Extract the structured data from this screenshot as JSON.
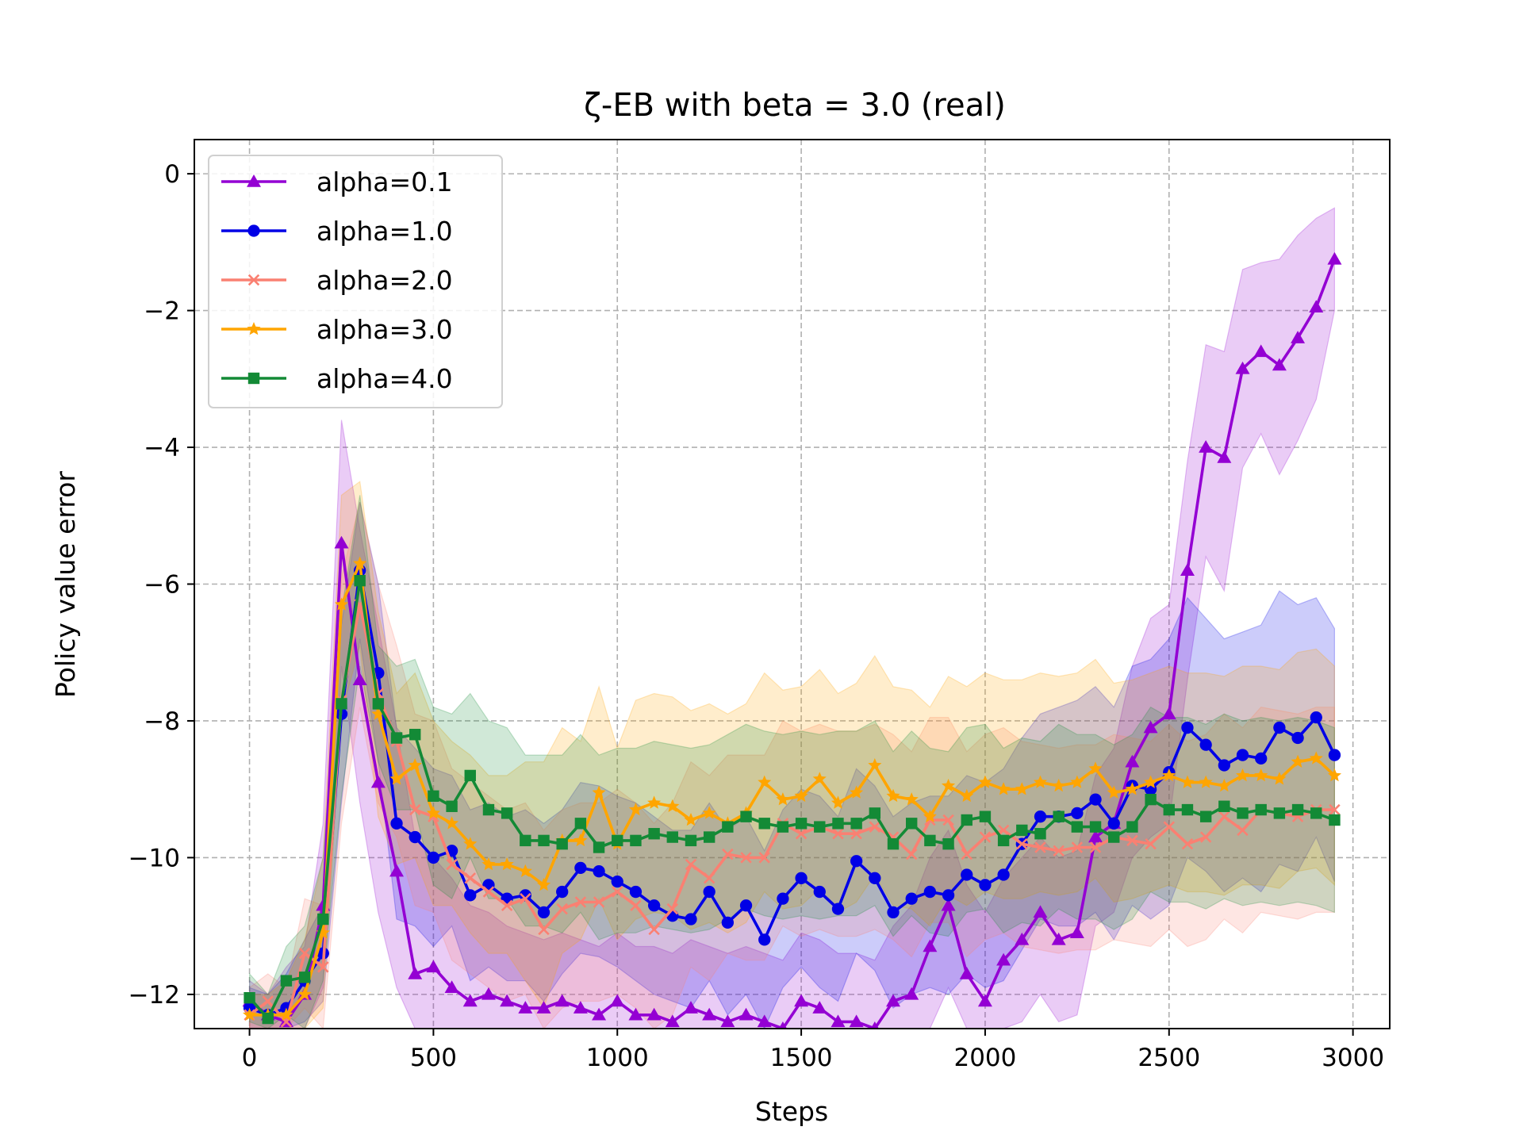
{
  "chart_data": {
    "type": "line",
    "title": "ζ-EB with beta = 3.0 (real)",
    "xlabel": "Steps",
    "ylabel": "Policy value error",
    "xlim": [
      -150,
      3100
    ],
    "ylim": [
      -12.5,
      0.5
    ],
    "xticks": [
      0,
      500,
      1000,
      1500,
      2000,
      2500,
      3000
    ],
    "yticks": [
      0,
      -2,
      -4,
      -6,
      -8,
      -10,
      -12
    ],
    "xtick_labels": [
      "0",
      "500",
      "1000",
      "1500",
      "2000",
      "2500",
      "3000"
    ],
    "ytick_labels": [
      "0",
      "−2",
      "−4",
      "−6",
      "−8",
      "−10",
      "−12"
    ],
    "grid": true,
    "legend_position": "top-left",
    "x": [
      0,
      50,
      100,
      150,
      200,
      250,
      300,
      350,
      400,
      450,
      500,
      550,
      600,
      650,
      700,
      750,
      800,
      850,
      900,
      950,
      1000,
      1050,
      1100,
      1150,
      1200,
      1250,
      1300,
      1350,
      1400,
      1450,
      1500,
      1550,
      1600,
      1650,
      1700,
      1750,
      1800,
      1850,
      1900,
      1950,
      2000,
      2050,
      2100,
      2150,
      2200,
      2250,
      2300,
      2350,
      2400,
      2450,
      2500,
      2550,
      2600,
      2650,
      2700,
      2750,
      2800,
      2850,
      2900,
      2950
    ],
    "series": [
      {
        "name": "alpha=0.1",
        "color": "#9400d3",
        "marker": "triangle",
        "values": [
          -12.1,
          -12.3,
          -12.4,
          -12.0,
          -10.7,
          -5.4,
          -7.4,
          -8.9,
          -10.2,
          -11.7,
          -11.6,
          -11.9,
          -12.1,
          -12.0,
          -12.1,
          -12.2,
          -12.2,
          -12.1,
          -12.2,
          -12.3,
          -12.1,
          -12.3,
          -12.3,
          -12.4,
          -12.2,
          -12.3,
          -12.4,
          -12.3,
          -12.4,
          -12.5,
          -12.1,
          -12.2,
          -12.4,
          -12.4,
          -12.5,
          -12.1,
          -12.0,
          -11.3,
          -10.7,
          -11.7,
          -12.1,
          -11.5,
          -11.2,
          -10.8,
          -11.2,
          -11.1,
          -9.7,
          -9.5,
          -8.6,
          -8.1,
          -7.9,
          -5.8,
          -4.0,
          -4.15,
          -2.85,
          -2.6,
          -2.8,
          -2.4,
          -1.95,
          -1.25
        ],
        "upper": [
          -11.8,
          -12.0,
          -11.6,
          -11.3,
          -9.5,
          -3.6,
          -5.2,
          -6.6,
          -8.1,
          -9.7,
          -10.0,
          -10.3,
          -10.7,
          -10.8,
          -11.0,
          -11.1,
          -11.2,
          -11.1,
          -11.2,
          -11.3,
          -11.1,
          -11.3,
          -11.3,
          -11.4,
          -11.2,
          -11.3,
          -11.4,
          -11.3,
          -11.4,
          -11.5,
          -11.1,
          -11.2,
          -11.4,
          -11.4,
          -11.5,
          -11.0,
          -10.7,
          -10.0,
          -9.6,
          -10.4,
          -10.8,
          -10.3,
          -10.0,
          -9.7,
          -10.0,
          -9.9,
          -8.8,
          -8.4,
          -7.2,
          -6.5,
          -6.3,
          -4.2,
          -2.5,
          -2.6,
          -1.4,
          -1.3,
          -1.25,
          -0.9,
          -0.65,
          -0.5
        ],
        "lower": [
          -12.5,
          -12.5,
          -12.5,
          -12.5,
          -11.9,
          -7.2,
          -9.2,
          -10.8,
          -11.9,
          -12.5,
          -12.5,
          -12.5,
          -12.5,
          -12.5,
          -12.5,
          -12.5,
          -12.5,
          -12.5,
          -12.5,
          -12.5,
          -12.5,
          -12.5,
          -12.5,
          -12.5,
          -12.5,
          -12.5,
          -12.5,
          -12.5,
          -12.5,
          -12.5,
          -12.5,
          -12.5,
          -12.5,
          -12.5,
          -12.5,
          -12.5,
          -12.5,
          -12.5,
          -11.9,
          -12.5,
          -12.5,
          -12.5,
          -12.4,
          -12.0,
          -12.4,
          -12.3,
          -11.0,
          -10.8,
          -10.0,
          -9.7,
          -9.5,
          -7.4,
          -5.6,
          -6.1,
          -4.3,
          -3.8,
          -4.4,
          -3.9,
          -3.3,
          -2.0
        ]
      },
      {
        "name": "alpha=1.0",
        "color": "#0000e6",
        "marker": "circle",
        "values": [
          -12.2,
          -12.3,
          -12.2,
          -11.8,
          -11.4,
          -7.9,
          -5.8,
          -7.3,
          -9.5,
          -9.7,
          -10.0,
          -9.9,
          -10.55,
          -10.4,
          -10.6,
          -10.55,
          -10.8,
          -10.5,
          -10.15,
          -10.2,
          -10.35,
          -10.5,
          -10.7,
          -10.85,
          -10.9,
          -10.5,
          -10.95,
          -10.7,
          -11.2,
          -10.6,
          -10.3,
          -10.5,
          -10.75,
          -10.05,
          -10.3,
          -10.8,
          -10.6,
          -10.5,
          -10.55,
          -10.25,
          -10.4,
          -10.25,
          -9.8,
          -9.4,
          -9.4,
          -9.35,
          -9.15,
          -9.5,
          -8.95,
          -9.0,
          -8.75,
          -8.1,
          -8.35,
          -8.65,
          -8.5,
          -8.55,
          -8.1,
          -8.25,
          -7.95,
          -8.5
        ],
        "upper": [
          -11.9,
          -12.0,
          -11.7,
          -11.2,
          -10.7,
          -6.6,
          -4.8,
          -6.0,
          -8.1,
          -8.4,
          -8.7,
          -8.8,
          -9.3,
          -9.2,
          -9.4,
          -9.3,
          -9.5,
          -9.3,
          -8.9,
          -8.95,
          -9.1,
          -9.2,
          -9.4,
          -9.6,
          -9.6,
          -9.2,
          -9.6,
          -9.4,
          -9.9,
          -9.3,
          -9.0,
          -9.1,
          -9.4,
          -8.7,
          -8.95,
          -9.4,
          -9.2,
          -9.1,
          -9.1,
          -8.8,
          -8.9,
          -8.7,
          -8.25,
          -7.9,
          -7.8,
          -7.7,
          -7.5,
          -7.8,
          -7.2,
          -7.1,
          -6.8,
          -6.2,
          -6.5,
          -6.8,
          -6.7,
          -6.6,
          -6.1,
          -6.3,
          -6.2,
          -6.65
        ],
        "lower": [
          -12.5,
          -12.5,
          -12.5,
          -12.4,
          -12.1,
          -9.2,
          -6.8,
          -8.6,
          -10.9,
          -11.0,
          -11.3,
          -11.0,
          -11.8,
          -11.6,
          -11.8,
          -11.8,
          -12.1,
          -11.7,
          -11.4,
          -11.45,
          -11.6,
          -11.8,
          -12.0,
          -12.1,
          -12.2,
          -11.8,
          -12.3,
          -12.0,
          -12.5,
          -11.9,
          -11.6,
          -11.9,
          -12.1,
          -11.4,
          -11.65,
          -12.2,
          -12.0,
          -11.9,
          -12.0,
          -11.7,
          -11.9,
          -11.8,
          -11.35,
          -10.9,
          -11.0,
          -11.0,
          -10.8,
          -11.2,
          -10.7,
          -10.9,
          -10.7,
          -10.0,
          -10.2,
          -10.5,
          -10.3,
          -10.5,
          -10.1,
          -10.2,
          -9.7,
          -10.35
        ]
      },
      {
        "name": "alpha=2.0",
        "color": "#fa8072",
        "marker": "x",
        "values": [
          -12.3,
          -12.1,
          -12.4,
          -11.4,
          -11.6,
          -7.7,
          -6.3,
          -7.6,
          -8.3,
          -9.3,
          -9.4,
          -10.1,
          -10.3,
          -10.5,
          -10.7,
          -10.6,
          -11.05,
          -10.75,
          -10.65,
          -10.65,
          -10.5,
          -10.7,
          -11.05,
          -10.75,
          -10.1,
          -10.3,
          -9.95,
          -10.0,
          -10.0,
          -9.5,
          -9.65,
          -9.55,
          -9.65,
          -9.65,
          -9.55,
          -9.7,
          -9.95,
          -9.45,
          -9.45,
          -9.95,
          -9.7,
          -9.6,
          -9.8,
          -9.85,
          -9.9,
          -9.85,
          -9.85,
          -9.7,
          -9.75,
          -9.8,
          -9.55,
          -9.8,
          -9.7,
          -9.4,
          -9.6,
          -9.3,
          -9.35,
          -9.4,
          -9.3,
          -9.3
        ],
        "upper": [
          -11.9,
          -11.7,
          -11.9,
          -10.6,
          -10.7,
          -5.9,
          -4.8,
          -6.0,
          -6.9,
          -7.9,
          -8.0,
          -8.7,
          -8.9,
          -9.1,
          -9.3,
          -9.2,
          -9.6,
          -9.3,
          -9.2,
          -9.2,
          -9.0,
          -9.2,
          -9.5,
          -9.2,
          -8.6,
          -8.8,
          -8.5,
          -8.5,
          -8.5,
          -8.0,
          -8.15,
          -8.05,
          -8.15,
          -8.15,
          -8.05,
          -8.2,
          -8.45,
          -7.95,
          -7.95,
          -8.45,
          -8.2,
          -8.1,
          -8.3,
          -8.35,
          -8.4,
          -8.35,
          -8.35,
          -8.2,
          -8.25,
          -8.3,
          -8.05,
          -8.3,
          -8.2,
          -7.9,
          -8.1,
          -7.8,
          -7.85,
          -7.9,
          -7.8,
          -7.8
        ],
        "lower": [
          -12.5,
          -12.5,
          -12.5,
          -12.2,
          -12.5,
          -9.5,
          -7.8,
          -9.2,
          -9.7,
          -10.7,
          -10.8,
          -11.5,
          -11.7,
          -11.9,
          -12.1,
          -12.0,
          -12.5,
          -12.2,
          -12.1,
          -12.1,
          -12.0,
          -12.2,
          -12.5,
          -12.3,
          -11.6,
          -11.8,
          -11.4,
          -11.5,
          -11.5,
          -11.0,
          -11.15,
          -11.05,
          -11.15,
          -11.15,
          -11.05,
          -11.2,
          -11.45,
          -10.95,
          -10.95,
          -11.45,
          -11.2,
          -11.1,
          -11.3,
          -11.35,
          -11.4,
          -11.35,
          -11.35,
          -11.2,
          -11.25,
          -11.3,
          -11.05,
          -11.3,
          -11.2,
          -10.9,
          -11.1,
          -10.8,
          -10.85,
          -10.9,
          -10.8,
          -10.8
        ]
      },
      {
        "name": "alpha=3.0",
        "color": "#ffa500",
        "marker": "star",
        "values": [
          -12.3,
          -12.3,
          -12.3,
          -12.0,
          -11.1,
          -6.3,
          -5.7,
          -7.9,
          -8.85,
          -8.65,
          -9.35,
          -9.5,
          -9.8,
          -10.1,
          -10.1,
          -10.2,
          -10.4,
          -9.75,
          -9.75,
          -9.05,
          -9.8,
          -9.3,
          -9.2,
          -9.25,
          -9.45,
          -9.35,
          -9.5,
          -9.35,
          -8.9,
          -9.15,
          -9.1,
          -8.85,
          -9.2,
          -9.05,
          -8.65,
          -9.1,
          -9.15,
          -9.4,
          -8.95,
          -9.1,
          -8.9,
          -9.0,
          -9.0,
          -8.9,
          -8.95,
          -8.9,
          -8.7,
          -9.05,
          -9.0,
          -8.9,
          -8.8,
          -8.9,
          -8.9,
          -8.95,
          -8.8,
          -8.8,
          -8.85,
          -8.6,
          -8.55,
          -8.8
        ],
        "upper": [
          -12.0,
          -12.0,
          -11.8,
          -11.2,
          -10.0,
          -4.7,
          -4.5,
          -6.4,
          -7.6,
          -7.3,
          -8.0,
          -8.3,
          -8.5,
          -8.8,
          -8.8,
          -8.6,
          -8.6,
          -8.1,
          -8.3,
          -7.5,
          -8.4,
          -7.7,
          -7.6,
          -7.65,
          -7.85,
          -7.75,
          -7.9,
          -7.75,
          -7.3,
          -7.55,
          -7.5,
          -7.25,
          -7.6,
          -7.45,
          -7.05,
          -7.5,
          -7.55,
          -7.8,
          -7.35,
          -7.5,
          -7.3,
          -7.4,
          -7.4,
          -7.3,
          -7.35,
          -7.3,
          -7.1,
          -7.45,
          -7.4,
          -7.3,
          -7.2,
          -7.3,
          -7.3,
          -7.35,
          -7.2,
          -7.2,
          -7.25,
          -7.0,
          -6.95,
          -7.2
        ],
        "lower": [
          -12.5,
          -12.5,
          -12.5,
          -12.5,
          -12.2,
          -7.9,
          -6.9,
          -9.4,
          -10.1,
          -10.0,
          -10.7,
          -10.7,
          -11.1,
          -11.4,
          -11.4,
          -11.8,
          -12.2,
          -11.4,
          -11.2,
          -10.6,
          -11.2,
          -10.9,
          -10.8,
          -10.85,
          -11.05,
          -10.95,
          -11.1,
          -10.95,
          -10.5,
          -10.75,
          -10.7,
          -10.45,
          -10.8,
          -10.65,
          -10.25,
          -10.7,
          -10.75,
          -11.0,
          -10.55,
          -10.7,
          -10.5,
          -10.6,
          -10.6,
          -10.5,
          -10.55,
          -10.5,
          -10.3,
          -10.65,
          -10.6,
          -10.5,
          -10.4,
          -10.5,
          -10.5,
          -10.55,
          -10.4,
          -10.4,
          -10.45,
          -10.2,
          -10.15,
          -10.4
        ]
      },
      {
        "name": "alpha=4.0",
        "color": "#138a36",
        "marker": "square",
        "values": [
          -12.05,
          -12.35,
          -11.8,
          -11.75,
          -10.9,
          -7.75,
          -5.95,
          -7.75,
          -8.25,
          -8.2,
          -9.1,
          -9.25,
          -8.8,
          -9.3,
          -9.35,
          -9.75,
          -9.75,
          -9.8,
          -9.5,
          -9.85,
          -9.75,
          -9.75,
          -9.65,
          -9.7,
          -9.75,
          -9.7,
          -9.55,
          -9.4,
          -9.5,
          -9.55,
          -9.5,
          -9.55,
          -9.5,
          -9.5,
          -9.35,
          -9.8,
          -9.5,
          -9.75,
          -9.8,
          -9.45,
          -9.4,
          -9.75,
          -9.6,
          -9.65,
          -9.4,
          -9.55,
          -9.55,
          -9.7,
          -9.55,
          -9.15,
          -9.3,
          -9.3,
          -9.4,
          -9.25,
          -9.35,
          -9.3,
          -9.35,
          -9.3,
          -9.35,
          -9.45
        ],
        "upper": [
          -11.7,
          -12.0,
          -11.3,
          -11.0,
          -10.0,
          -6.4,
          -4.7,
          -6.9,
          -7.2,
          -7.1,
          -7.8,
          -7.9,
          -7.6,
          -8.0,
          -8.1,
          -8.5,
          -8.5,
          -8.5,
          -8.2,
          -8.5,
          -8.4,
          -8.4,
          -8.3,
          -8.35,
          -8.4,
          -8.35,
          -8.2,
          -8.05,
          -8.15,
          -8.2,
          -8.15,
          -8.2,
          -8.15,
          -8.15,
          -8.0,
          -8.45,
          -8.15,
          -8.4,
          -8.45,
          -8.1,
          -8.05,
          -8.4,
          -8.25,
          -8.3,
          -8.05,
          -8.2,
          -8.2,
          -8.35,
          -8.2,
          -7.8,
          -7.95,
          -7.95,
          -8.05,
          -7.9,
          -8.0,
          -7.95,
          -8.0,
          -7.95,
          -8.0,
          -8.1
        ],
        "lower": [
          -12.4,
          -12.5,
          -12.3,
          -12.5,
          -11.8,
          -9.1,
          -7.2,
          -8.6,
          -9.3,
          -9.3,
          -10.4,
          -10.6,
          -10.0,
          -10.6,
          -10.6,
          -11.0,
          -11.0,
          -11.1,
          -10.8,
          -11.2,
          -11.1,
          -11.1,
          -11.0,
          -11.05,
          -11.1,
          -11.05,
          -10.9,
          -10.75,
          -10.85,
          -10.9,
          -10.85,
          -10.9,
          -10.85,
          -10.85,
          -10.7,
          -11.15,
          -10.85,
          -11.1,
          -11.15,
          -10.8,
          -10.75,
          -11.1,
          -10.95,
          -11.0,
          -10.75,
          -10.9,
          -10.9,
          -11.05,
          -10.9,
          -10.5,
          -10.65,
          -10.65,
          -10.75,
          -10.6,
          -10.7,
          -10.65,
          -10.7,
          -10.65,
          -10.7,
          -10.8
        ]
      }
    ]
  }
}
